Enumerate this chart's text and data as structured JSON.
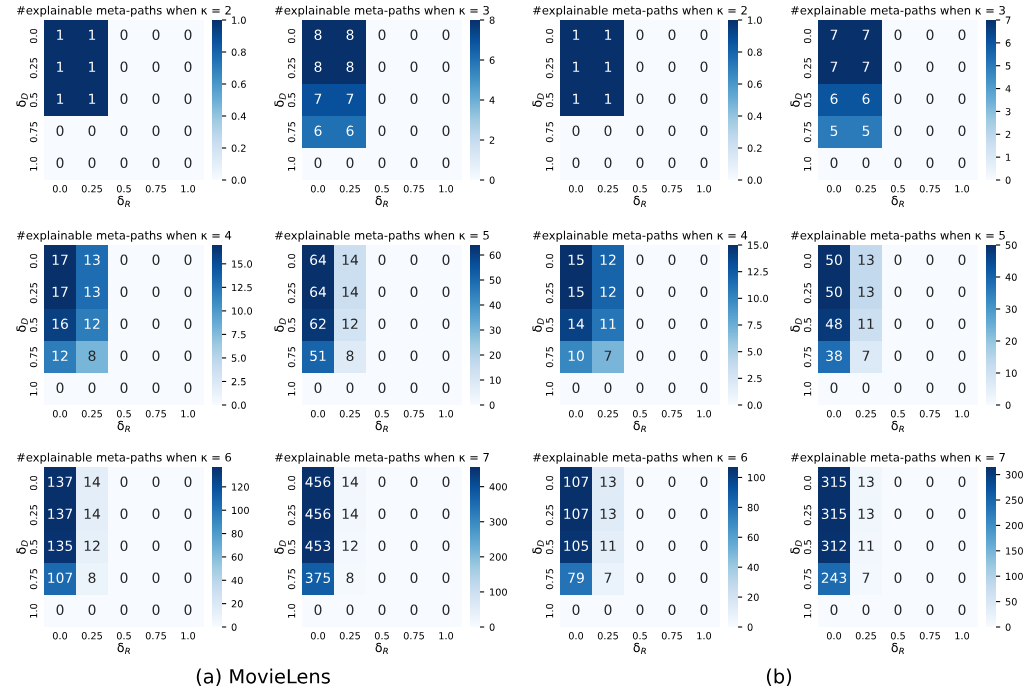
{
  "chart_data": [
    {
      "type": "heatmap",
      "title": "#explainable meta-paths when κ = 2",
      "xlabel": "δ$_{R}$",
      "ylabel": "δ$_{D}$",
      "categories": [
        "0.0",
        "0.25",
        "0.5",
        "0.75",
        "1.0"
      ],
      "y_categories": [
        "0.0",
        "0.25",
        "0.5",
        "0.75",
        "1.0"
      ],
      "cells": [
        [
          1,
          1,
          0,
          0,
          0
        ],
        [
          1,
          1,
          0,
          0,
          0
        ],
        [
          1,
          1,
          0,
          0,
          0
        ],
        [
          0,
          0,
          0,
          0,
          0
        ],
        [
          0,
          0,
          0,
          0,
          0
        ]
      ],
      "clim": [
        0,
        1
      ],
      "cticks": [
        {
          "value": 0,
          "label": "0.0"
        },
        {
          "value": 0.2,
          "label": "0.2"
        },
        {
          "value": 0.4,
          "label": "0.4"
        },
        {
          "value": 0.6,
          "label": "0.6"
        },
        {
          "value": 0.8,
          "label": "0.8"
        },
        {
          "value": 1,
          "label": "1.0"
        }
      ],
      "data_labels": true
    },
    {
      "type": "heatmap",
      "title": "#explainable meta-paths when κ = 3",
      "xlabel": "δ$_{R}$",
      "ylabel": "δ$_{D}$",
      "categories": [
        "0.0",
        "0.25",
        "0.5",
        "0.75",
        "1.0"
      ],
      "y_categories": [
        "0.0",
        "0.25",
        "0.5",
        "0.75",
        "1.0"
      ],
      "cells": [
        [
          8,
          8,
          0,
          0,
          0
        ],
        [
          8,
          8,
          0,
          0,
          0
        ],
        [
          7,
          7,
          0,
          0,
          0
        ],
        [
          6,
          6,
          0,
          0,
          0
        ],
        [
          0,
          0,
          0,
          0,
          0
        ]
      ],
      "clim": [
        0,
        8
      ],
      "cticks": [
        0,
        2,
        4,
        6,
        8
      ],
      "data_labels": true
    },
    {
      "type": "heatmap",
      "title": "#explainable meta-paths when κ = 2",
      "xlabel": "δ$_{R}$",
      "ylabel": "δ$_{D}$",
      "categories": [
        "0.0",
        "0.25",
        "0.5",
        "0.75",
        "1.0"
      ],
      "y_categories": [
        "0.0",
        "0.25",
        "0.5",
        "0.75",
        "1.0"
      ],
      "cells": [
        [
          1,
          1,
          0,
          0,
          0
        ],
        [
          1,
          1,
          0,
          0,
          0
        ],
        [
          1,
          1,
          0,
          0,
          0
        ],
        [
          0,
          0,
          0,
          0,
          0
        ],
        [
          0,
          0,
          0,
          0,
          0
        ]
      ],
      "clim": [
        0,
        1
      ],
      "cticks": [
        {
          "value": 0,
          "label": "0.0"
        },
        {
          "value": 0.2,
          "label": "0.2"
        },
        {
          "value": 0.4,
          "label": "0.4"
        },
        {
          "value": 0.6,
          "label": "0.6"
        },
        {
          "value": 0.8,
          "label": "0.8"
        },
        {
          "value": 1,
          "label": "1.0"
        }
      ],
      "data_labels": true
    },
    {
      "type": "heatmap",
      "title": "#explainable meta-paths when κ = 3",
      "xlabel": "δ$_{R}$",
      "ylabel": "δ$_{D}$",
      "categories": [
        "0.0",
        "0.25",
        "0.5",
        "0.75",
        "1.0"
      ],
      "y_categories": [
        "0.0",
        "0.25",
        "0.5",
        "0.75",
        "1.0"
      ],
      "cells": [
        [
          7,
          7,
          0,
          0,
          0
        ],
        [
          7,
          7,
          0,
          0,
          0
        ],
        [
          6,
          6,
          0,
          0,
          0
        ],
        [
          5,
          5,
          0,
          0,
          0
        ],
        [
          0,
          0,
          0,
          0,
          0
        ]
      ],
      "clim": [
        0,
        7
      ],
      "cticks": [
        0,
        1,
        2,
        3,
        4,
        5,
        6,
        7
      ],
      "data_labels": true
    },
    {
      "type": "heatmap",
      "title": "#explainable meta-paths when κ = 4",
      "xlabel": "δ$_{R}$",
      "ylabel": "δ$_{D}$",
      "categories": [
        "0.0",
        "0.25",
        "0.5",
        "0.75",
        "1.0"
      ],
      "y_categories": [
        "0.0",
        "0.25",
        "0.5",
        "0.75",
        "1.0"
      ],
      "cells": [
        [
          17,
          13,
          0,
          0,
          0
        ],
        [
          17,
          13,
          0,
          0,
          0
        ],
        [
          16,
          12,
          0,
          0,
          0
        ],
        [
          12,
          8,
          0,
          0,
          0
        ],
        [
          0,
          0,
          0,
          0,
          0
        ]
      ],
      "clim": [
        0,
        17
      ],
      "cticks": [
        {
          "value": 0,
          "label": "0.0"
        },
        {
          "value": 2.5,
          "label": "2.5"
        },
        {
          "value": 5,
          "label": "5.0"
        },
        {
          "value": 7.5,
          "label": "7.5"
        },
        {
          "value": 10,
          "label": "10.0"
        },
        {
          "value": 12.5,
          "label": "12.5"
        },
        {
          "value": 15,
          "label": "15.0"
        }
      ],
      "data_labels": true
    },
    {
      "type": "heatmap",
      "title": "#explainable meta-paths when κ = 5",
      "xlabel": "δ$_{R}$",
      "ylabel": "δ$_{D}$",
      "categories": [
        "0.0",
        "0.25",
        "0.5",
        "0.75",
        "1.0"
      ],
      "y_categories": [
        "0.0",
        "0.25",
        "0.5",
        "0.75",
        "1.0"
      ],
      "cells": [
        [
          64,
          14,
          0,
          0,
          0
        ],
        [
          64,
          14,
          0,
          0,
          0
        ],
        [
          62,
          12,
          0,
          0,
          0
        ],
        [
          51,
          8,
          0,
          0,
          0
        ],
        [
          0,
          0,
          0,
          0,
          0
        ]
      ],
      "clim": [
        0,
        64
      ],
      "cticks": [
        0,
        10,
        20,
        30,
        40,
        50,
        60
      ],
      "data_labels": true
    },
    {
      "type": "heatmap",
      "title": "#explainable meta-paths when κ = 4",
      "xlabel": "δ$_{R}$",
      "ylabel": "δ$_{D}$",
      "categories": [
        "0.0",
        "0.25",
        "0.5",
        "0.75",
        "1.0"
      ],
      "y_categories": [
        "0.0",
        "0.25",
        "0.5",
        "0.75",
        "1.0"
      ],
      "cells": [
        [
          15,
          12,
          0,
          0,
          0
        ],
        [
          15,
          12,
          0,
          0,
          0
        ],
        [
          14,
          11,
          0,
          0,
          0
        ],
        [
          10,
          7,
          0,
          0,
          0
        ],
        [
          0,
          0,
          0,
          0,
          0
        ]
      ],
      "clim": [
        0,
        15
      ],
      "cticks": [
        {
          "value": 0,
          "label": "0.0"
        },
        {
          "value": 2.5,
          "label": "2.5"
        },
        {
          "value": 5,
          "label": "5.0"
        },
        {
          "value": 7.5,
          "label": "7.5"
        },
        {
          "value": 10,
          "label": "10.0"
        },
        {
          "value": 12.5,
          "label": "12.5"
        },
        {
          "value": 15,
          "label": "15.0"
        }
      ],
      "data_labels": true
    },
    {
      "type": "heatmap",
      "title": "#explainable meta-paths when κ = 5",
      "xlabel": "δ$_{R}$",
      "ylabel": "δ$_{D}$",
      "categories": [
        "0.0",
        "0.25",
        "0.5",
        "0.75",
        "1.0"
      ],
      "y_categories": [
        "0.0",
        "0.25",
        "0.5",
        "0.75",
        "1.0"
      ],
      "cells": [
        [
          50,
          13,
          0,
          0,
          0
        ],
        [
          50,
          13,
          0,
          0,
          0
        ],
        [
          48,
          11,
          0,
          0,
          0
        ],
        [
          38,
          7,
          0,
          0,
          0
        ],
        [
          0,
          0,
          0,
          0,
          0
        ]
      ],
      "clim": [
        0,
        50
      ],
      "cticks": [
        0,
        10,
        20,
        30,
        40,
        50
      ],
      "data_labels": true
    },
    {
      "type": "heatmap",
      "title": "#explainable meta-paths when κ = 6",
      "xlabel": "δ$_{R}$",
      "ylabel": "δ$_{D}$",
      "categories": [
        "0.0",
        "0.25",
        "0.5",
        "0.75",
        "1.0"
      ],
      "y_categories": [
        "0.0",
        "0.25",
        "0.5",
        "0.75",
        "1.0"
      ],
      "cells": [
        [
          137,
          14,
          0,
          0,
          0
        ],
        [
          137,
          14,
          0,
          0,
          0
        ],
        [
          135,
          12,
          0,
          0,
          0
        ],
        [
          107,
          8,
          0,
          0,
          0
        ],
        [
          0,
          0,
          0,
          0,
          0
        ]
      ],
      "clim": [
        0,
        137
      ],
      "cticks": [
        0,
        20,
        40,
        60,
        80,
        100,
        120
      ],
      "data_labels": true,
      "annotations": [
        "(a) MovieLens"
      ]
    },
    {
      "type": "heatmap",
      "title": "#explainable meta-paths when κ = 7",
      "xlabel": "δ$_{R}$",
      "ylabel": "δ$_{D}$",
      "categories": [
        "0.0",
        "0.25",
        "0.5",
        "0.75",
        "1.0"
      ],
      "y_categories": [
        "0.0",
        "0.25",
        "0.5",
        "0.75",
        "1.0"
      ],
      "cells": [
        [
          456,
          14,
          0,
          0,
          0
        ],
        [
          456,
          14,
          0,
          0,
          0
        ],
        [
          453,
          12,
          0,
          0,
          0
        ],
        [
          375,
          8,
          0,
          0,
          0
        ],
        [
          0,
          0,
          0,
          0,
          0
        ]
      ],
      "clim": [
        0,
        456
      ],
      "cticks": [
        0,
        100,
        200,
        300,
        400
      ],
      "data_labels": true
    },
    {
      "type": "heatmap",
      "title": "#explainable meta-paths when κ = 6",
      "xlabel": "δ$_{R}$",
      "ylabel": "δ$_{D}$",
      "categories": [
        "0.0",
        "0.25",
        "0.5",
        "0.75",
        "1.0"
      ],
      "y_categories": [
        "0.0",
        "0.25",
        "0.5",
        "0.75",
        "1.0"
      ],
      "cells": [
        [
          107,
          13,
          0,
          0,
          0
        ],
        [
          107,
          13,
          0,
          0,
          0
        ],
        [
          105,
          11,
          0,
          0,
          0
        ],
        [
          79,
          7,
          0,
          0,
          0
        ],
        [
          0,
          0,
          0,
          0,
          0
        ]
      ],
      "clim": [
        0,
        107
      ],
      "cticks": [
        0,
        20,
        40,
        60,
        80,
        100
      ],
      "data_labels": true,
      "annotations": [
        "(b)"
      ]
    },
    {
      "type": "heatmap",
      "title": "#explainable meta-paths when κ = 7",
      "xlabel": "δ$_{R}$",
      "ylabel": "δ$_{D}$",
      "categories": [
        "0.0",
        "0.25",
        "0.5",
        "0.75",
        "1.0"
      ],
      "y_categories": [
        "0.0",
        "0.25",
        "0.5",
        "0.75",
        "1.0"
      ],
      "cells": [
        [
          315,
          13,
          0,
          0,
          0
        ],
        [
          315,
          13,
          0,
          0,
          0
        ],
        [
          312,
          11,
          0,
          0,
          0
        ],
        [
          243,
          7,
          0,
          0,
          0
        ],
        [
          0,
          0,
          0,
          0,
          0
        ]
      ],
      "clim": [
        0,
        315
      ],
      "cticks": [
        0,
        50,
        100,
        150,
        200,
        250,
        300
      ],
      "data_labels": true
    }
  ]
}
